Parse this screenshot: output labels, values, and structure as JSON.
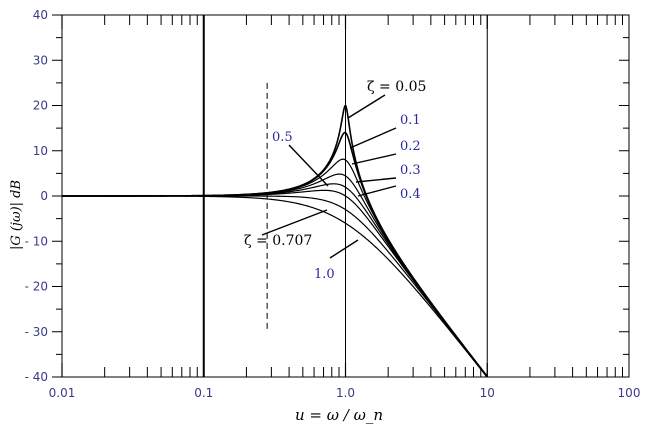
{
  "chart_data": {
    "type": "line",
    "title": "",
    "xlabel": "u = ω / ω_n",
    "ylabel": "|G (jω)| dB",
    "x_scale": "log",
    "xlim": [
      0.01,
      100
    ],
    "ylim": [
      -40,
      40
    ],
    "x_tick_labels": [
      "0.01",
      "0.1",
      "1.0",
      "10",
      "100"
    ],
    "y_tick_labels": [
      "40",
      "30",
      "20",
      "10",
      "0",
      "- 10",
      "- 20",
      "- 30",
      "- 40"
    ],
    "y_tick_values": [
      40,
      30,
      20,
      10,
      0,
      -10,
      -20,
      -30,
      -40
    ],
    "x_tick_values": [
      0.01,
      0.1,
      1,
      10,
      100
    ],
    "zetas": [
      0.05,
      0.1,
      0.2,
      0.3,
      0.4,
      0.5,
      0.707,
      1.0
    ],
    "annotations": [
      {
        "text": "ζ = 0.05",
        "style": "black"
      },
      {
        "text": "0.1",
        "style": "blue"
      },
      {
        "text": "0.2",
        "style": "blue"
      },
      {
        "text": "0.3",
        "style": "blue"
      },
      {
        "text": "0.4",
        "style": "blue"
      },
      {
        "text": "0.5",
        "style": "blue"
      },
      {
        "text": "ζ = 0.707",
        "style": "black"
      },
      {
        "text": "1.0",
        "style": "blue"
      }
    ],
    "dashed_marker_x": 0.28,
    "grid": "vertical lines at decades"
  },
  "colors": {
    "curve": "#000000",
    "frame": "#000000",
    "tick_label": "#3a3a8a",
    "annotation_blue": "#2a2aa0"
  }
}
